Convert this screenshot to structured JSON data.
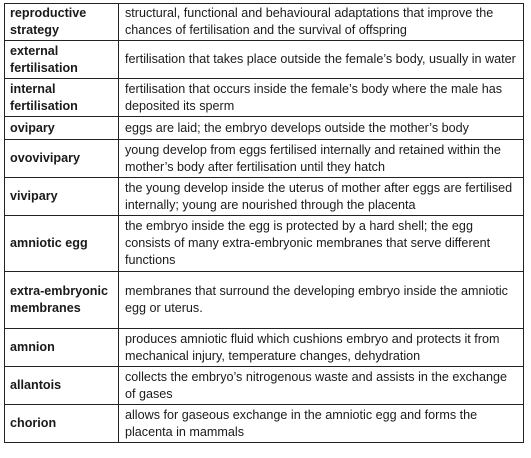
{
  "table": {
    "rows": [
      {
        "term": "reproductive strategy",
        "definition": "structural, functional and behavioural adaptations that improve the chances of fertilisation and the survival of offspring"
      },
      {
        "term": "external fertilisation",
        "definition": "fertilisation that takes place outside the female’s body, usually in water"
      },
      {
        "term": "internal fertilisation",
        "definition": "fertilisation that occurs inside the female’s body where the male has deposited its sperm"
      },
      {
        "term": "ovipary",
        "definition": "eggs are laid; the embryo develops outside the mother’s body"
      },
      {
        "term": "ovovivipary",
        "definition": "young develop from eggs fertilised internally and retained within the mother’s body after fertilisation until they hatch"
      },
      {
        "term": "vivipary",
        "definition": "the young develop inside the uterus of mother after eggs are fertilised internally; young are nourished through the placenta"
      },
      {
        "term": "amniotic egg",
        "definition": "the embryo inside the egg is protected by a hard shell; the egg consists of many extra-embryonic membranes that serve different functions"
      },
      {
        "term": "extra-embryonic membranes",
        "definition": "membranes that surround the developing embryo inside the amniotic egg or uterus."
      },
      {
        "term": "amnion",
        "definition": "produces amniotic fluid which cushions embryo and protects it from mechanical injury, temperature changes, dehydration"
      },
      {
        "term": "allantois",
        "definition": "collects the embryo’s nitrogenous waste and assists in the exchange of gases"
      },
      {
        "term": "chorion",
        "definition": "allows for gaseous exchange in the amniotic egg and forms the placenta in mammals"
      }
    ]
  }
}
